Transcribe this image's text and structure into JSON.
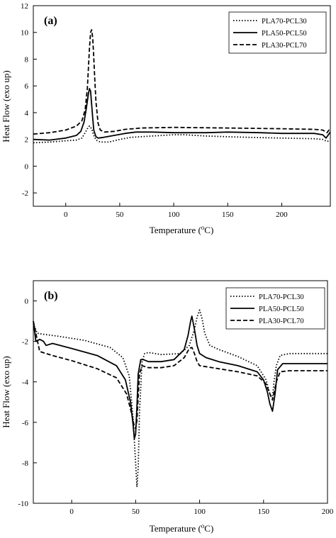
{
  "chart_data": [
    {
      "type": "line",
      "panel_label": "(a)",
      "xlabel_text": "Temperature (",
      "xlabel_sup": "o",
      "xlabel_unit": "C)",
      "ylabel": "Heat Flow (exo up)",
      "xlim": [
        -30,
        245
      ],
      "ylim": [
        -3,
        12
      ],
      "xticks": [
        0,
        50,
        100,
        150,
        200
      ],
      "yticks": [
        -2,
        0,
        2,
        4,
        6,
        8,
        10,
        12
      ],
      "grid": false,
      "legend_position": "top-right",
      "series": [
        {
          "name": "PLA70-PCL30",
          "style": "dotted",
          "x": [
            -30,
            -15,
            0,
            10,
            15,
            18,
            20,
            22,
            24,
            26,
            28,
            32,
            40,
            50,
            60,
            80,
            100,
            110,
            130,
            150,
            170,
            200,
            230,
            238,
            242,
            245
          ],
          "y": [
            1.75,
            1.8,
            1.9,
            1.95,
            2.1,
            2.5,
            2.8,
            3.0,
            2.8,
            2.3,
            1.95,
            1.8,
            1.8,
            2.0,
            2.15,
            2.25,
            2.35,
            2.35,
            2.25,
            2.2,
            2.15,
            2.1,
            2.05,
            2.0,
            1.85,
            1.9
          ]
        },
        {
          "name": "PLA50-PCL50",
          "style": "solid",
          "x": [
            -30,
            -15,
            0,
            10,
            14,
            17,
            19,
            21,
            22,
            23,
            24,
            25,
            26,
            28,
            30,
            35,
            45,
            55,
            65,
            80,
            100,
            130,
            150,
            180,
            200,
            230,
            238,
            241,
            245
          ],
          "y": [
            2.0,
            1.95,
            2.1,
            2.3,
            2.6,
            3.3,
            4.3,
            5.4,
            5.8,
            5.6,
            4.6,
            3.6,
            2.7,
            2.2,
            2.1,
            2.15,
            2.3,
            2.45,
            2.55,
            2.55,
            2.5,
            2.5,
            2.55,
            2.5,
            2.45,
            2.45,
            2.35,
            2.1,
            2.55
          ]
        },
        {
          "name": "PLA30-PCL70",
          "style": "dashed",
          "x": [
            -30,
            -15,
            0,
            10,
            15,
            18,
            20,
            21,
            22,
            23,
            24,
            25,
            26,
            27,
            28,
            30,
            32,
            36,
            45,
            55,
            70,
            100,
            150,
            200,
            230,
            238,
            242,
            245
          ],
          "y": [
            2.4,
            2.5,
            2.7,
            3.0,
            3.4,
            4.2,
            5.8,
            7.3,
            8.8,
            10.0,
            10.2,
            9.6,
            8.1,
            6.4,
            4.8,
            3.2,
            2.7,
            2.55,
            2.6,
            2.75,
            2.85,
            2.9,
            2.85,
            2.8,
            2.75,
            2.7,
            2.5,
            2.85
          ]
        }
      ]
    },
    {
      "type": "line",
      "panel_label": "(b)",
      "xlabel_text": "Temperature (",
      "xlabel_sup": "o",
      "xlabel_unit": "C)",
      "ylabel": "Heat Flow (exo up)",
      "xlim": [
        -30,
        200
      ],
      "ylim": [
        -10,
        1
      ],
      "xticks": [
        0,
        50,
        100,
        150,
        200
      ],
      "yticks": [
        -10,
        -8,
        -6,
        -4,
        -2,
        0
      ],
      "grid": false,
      "legend_position": "top-right",
      "series": [
        {
          "name": "PLA70-PCL30",
          "style": "dotted",
          "x": [
            -30,
            -27,
            -22,
            -10,
            10,
            30,
            40,
            45,
            48,
            50,
            51,
            52,
            53,
            55,
            57,
            60,
            70,
            85,
            92,
            96,
            98,
            100,
            102,
            104,
            108,
            115,
            130,
            145,
            152,
            155,
            157,
            158,
            160,
            163,
            170,
            200
          ],
          "y": [
            -1.1,
            -1.6,
            -1.65,
            -1.75,
            -1.95,
            -2.3,
            -2.8,
            -3.7,
            -5.8,
            -8.0,
            -9.2,
            -8.2,
            -5.5,
            -3.0,
            -2.6,
            -2.55,
            -2.65,
            -2.6,
            -2.2,
            -1.4,
            -0.8,
            -0.45,
            -0.9,
            -1.6,
            -2.2,
            -2.4,
            -2.75,
            -3.2,
            -3.9,
            -4.6,
            -4.8,
            -4.1,
            -3.2,
            -2.7,
            -2.6,
            -2.6
          ]
        },
        {
          "name": "PLA50-PCL50",
          "style": "solid",
          "x": [
            -30,
            -28,
            -25,
            -22,
            -20,
            -15,
            0,
            20,
            35,
            42,
            46,
            48,
            49,
            50,
            51,
            52,
            54,
            56,
            60,
            70,
            80,
            88,
            91,
            93,
            94,
            96,
            98,
            100,
            105,
            115,
            130,
            145,
            150,
            153,
            155,
            157,
            159,
            161,
            165,
            180,
            200
          ],
          "y": [
            -1.0,
            -2.0,
            -1.9,
            -2.0,
            -2.2,
            -2.1,
            -2.35,
            -2.7,
            -3.2,
            -3.9,
            -5.0,
            -6.1,
            -6.8,
            -6.6,
            -5.2,
            -3.6,
            -2.9,
            -2.9,
            -3.0,
            -3.0,
            -2.9,
            -2.4,
            -1.7,
            -1.0,
            -0.75,
            -1.4,
            -2.2,
            -2.6,
            -2.8,
            -3.0,
            -3.2,
            -3.5,
            -3.9,
            -4.5,
            -5.1,
            -5.45,
            -4.6,
            -3.4,
            -3.1,
            -3.1,
            -3.1
          ]
        },
        {
          "name": "PLA30-PCL70",
          "style": "dashed",
          "x": [
            -30,
            -25,
            -15,
            0,
            20,
            35,
            43,
            47,
            49,
            50,
            51,
            52,
            53,
            55,
            60,
            70,
            80,
            88,
            92,
            94,
            96,
            98,
            100,
            105,
            115,
            130,
            145,
            152,
            155,
            157,
            160,
            163,
            170,
            200
          ],
          "y": [
            -1.0,
            -2.5,
            -2.7,
            -2.95,
            -3.35,
            -3.8,
            -4.6,
            -5.6,
            -6.2,
            -6.3,
            -5.9,
            -4.7,
            -3.6,
            -3.2,
            -3.3,
            -3.3,
            -3.2,
            -2.8,
            -2.35,
            -2.3,
            -2.6,
            -3.0,
            -3.2,
            -3.25,
            -3.35,
            -3.5,
            -3.7,
            -4.1,
            -4.6,
            -4.9,
            -4.0,
            -3.5,
            -3.45,
            -3.45
          ]
        }
      ]
    }
  ]
}
